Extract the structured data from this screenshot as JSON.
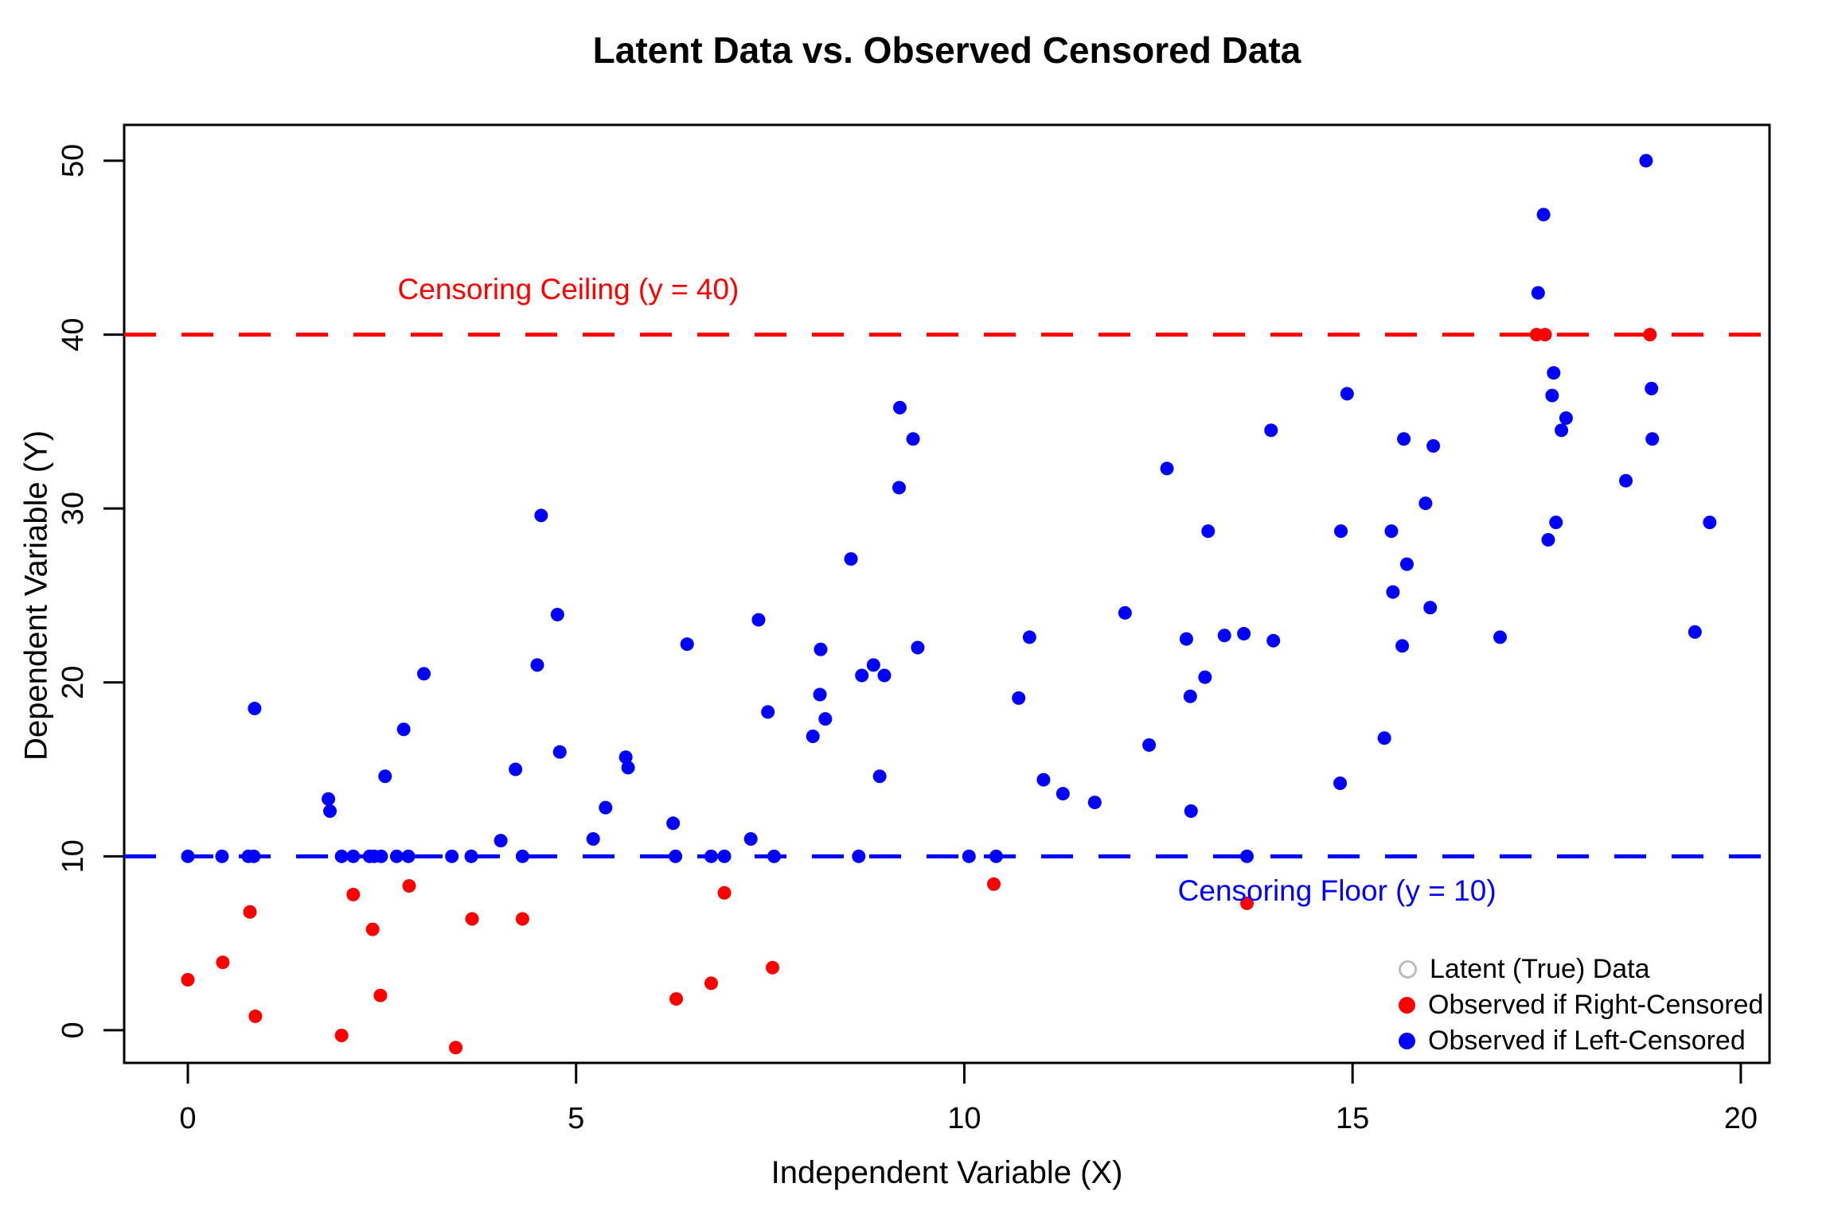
{
  "chart_data": {
    "type": "scatter",
    "title": "Latent Data vs. Observed Censored Data",
    "xlabel": "Independent Variable (X)",
    "ylabel": "Dependent Variable (Y)",
    "x_ticks": [
      0,
      5,
      10,
      15,
      20
    ],
    "y_ticks": [
      0,
      10,
      20,
      30,
      40,
      50
    ],
    "xlim": [
      -0.82,
      20.37
    ],
    "ylim": [
      -1.88,
      52.06
    ],
    "grid": false,
    "background": "#ffffff",
    "reference_lines": {
      "ceiling": {
        "y": 40,
        "label": "Censoring Ceiling (y = 40)",
        "color": "#ff0000",
        "style": "dashed",
        "label_anchor": {
          "x": 4.9,
          "y": 42.6
        }
      },
      "floor": {
        "y": 10,
        "label": "Censoring Floor (y = 10)",
        "color": "#0000ff",
        "style": "dashed",
        "label_anchor": {
          "x": 14.8,
          "y": 8.0
        }
      }
    },
    "legend": {
      "position": "bottom-right",
      "entries": [
        {
          "label": "Latent (True) Data",
          "marker": "open-circle",
          "color": "#bdbdbd"
        },
        {
          "label": "Observed if Right-Censored",
          "marker": "filled-circle",
          "color": "#ff0000"
        },
        {
          "label": "Observed if Left-Censored",
          "marker": "filled-circle",
          "color": "#0000ff"
        }
      ]
    },
    "series": [
      {
        "name": "Observed if Right-Censored",
        "color": "#ff0000",
        "points": [
          [
            0.0,
            2.9
          ],
          [
            0.45,
            3.9
          ],
          [
            0.8,
            6.8
          ],
          [
            0.87,
            0.8
          ],
          [
            1.98,
            -0.3
          ],
          [
            2.13,
            7.8
          ],
          [
            2.38,
            5.8
          ],
          [
            2.48,
            2.0
          ],
          [
            2.85,
            8.3
          ],
          [
            3.45,
            -1.0
          ],
          [
            3.66,
            6.4
          ],
          [
            4.31,
            6.4
          ],
          [
            6.29,
            1.8
          ],
          [
            6.74,
            2.7
          ],
          [
            6.91,
            7.9
          ],
          [
            7.53,
            3.6
          ],
          [
            10.38,
            8.4
          ],
          [
            13.64,
            7.3
          ],
          [
            17.37,
            40
          ],
          [
            17.48,
            40
          ],
          [
            18.83,
            40
          ]
        ]
      },
      {
        "name": "Observed if Left-Censored",
        "color": "#0000ff",
        "points": [
          [
            0.0,
            10
          ],
          [
            0.44,
            10
          ],
          [
            0.78,
            10
          ],
          [
            0.85,
            10
          ],
          [
            1.98,
            10
          ],
          [
            2.13,
            10
          ],
          [
            2.34,
            10
          ],
          [
            2.4,
            10
          ],
          [
            2.49,
            10
          ],
          [
            2.69,
            10
          ],
          [
            2.84,
            10
          ],
          [
            3.4,
            10
          ],
          [
            3.65,
            10
          ],
          [
            4.31,
            10
          ],
          [
            6.28,
            10
          ],
          [
            6.74,
            10
          ],
          [
            6.91,
            10
          ],
          [
            7.55,
            10
          ],
          [
            8.64,
            10
          ],
          [
            10.06,
            10
          ],
          [
            10.41,
            10
          ],
          [
            13.64,
            10
          ],
          [
            0.86,
            18.5
          ],
          [
            1.81,
            13.3
          ],
          [
            1.83,
            12.6
          ],
          [
            2.54,
            14.6
          ],
          [
            2.78,
            17.3
          ],
          [
            3.04,
            20.5
          ],
          [
            4.03,
            10.9
          ],
          [
            4.22,
            15.0
          ],
          [
            4.5,
            21.0
          ],
          [
            4.55,
            29.6
          ],
          [
            4.76,
            23.9
          ],
          [
            4.79,
            16.0
          ],
          [
            5.22,
            11.0
          ],
          [
            5.38,
            12.8
          ],
          [
            5.64,
            15.7
          ],
          [
            5.67,
            15.1
          ],
          [
            6.25,
            11.9
          ],
          [
            6.43,
            22.2
          ],
          [
            7.25,
            11.0
          ],
          [
            7.35,
            23.6
          ],
          [
            7.47,
            18.3
          ],
          [
            8.05,
            16.9
          ],
          [
            8.14,
            19.3
          ],
          [
            8.15,
            21.9
          ],
          [
            8.21,
            17.9
          ],
          [
            8.54,
            27.1
          ],
          [
            8.68,
            20.4
          ],
          [
            8.83,
            21.0
          ],
          [
            8.91,
            14.6
          ],
          [
            8.97,
            20.4
          ],
          [
            9.16,
            31.2
          ],
          [
            9.17,
            35.8
          ],
          [
            9.34,
            34.0
          ],
          [
            9.4,
            22.0
          ],
          [
            10.7,
            19.1
          ],
          [
            10.84,
            22.6
          ],
          [
            11.02,
            14.4
          ],
          [
            11.27,
            13.6
          ],
          [
            11.68,
            13.1
          ],
          [
            12.07,
            24.0
          ],
          [
            12.38,
            16.4
          ],
          [
            12.61,
            32.3
          ],
          [
            12.86,
            22.5
          ],
          [
            12.91,
            19.2
          ],
          [
            12.92,
            12.6
          ],
          [
            13.1,
            20.3
          ],
          [
            13.14,
            28.7
          ],
          [
            13.35,
            22.7
          ],
          [
            13.6,
            22.8
          ],
          [
            13.95,
            34.5
          ],
          [
            13.98,
            22.4
          ],
          [
            14.84,
            14.2
          ],
          [
            14.85,
            28.7
          ],
          [
            14.93,
            36.6
          ],
          [
            15.41,
            16.8
          ],
          [
            15.5,
            28.7
          ],
          [
            15.52,
            25.2
          ],
          [
            15.64,
            22.1
          ],
          [
            15.66,
            34.0
          ],
          [
            15.7,
            26.8
          ],
          [
            15.94,
            30.3
          ],
          [
            16.0,
            24.3
          ],
          [
            16.04,
            33.6
          ],
          [
            16.9,
            22.6
          ],
          [
            17.39,
            42.4
          ],
          [
            17.46,
            46.9
          ],
          [
            17.52,
            28.2
          ],
          [
            17.57,
            36.5
          ],
          [
            17.59,
            37.8
          ],
          [
            17.62,
            29.2
          ],
          [
            17.69,
            34.5
          ],
          [
            17.75,
            35.2
          ],
          [
            18.52,
            31.6
          ],
          [
            18.78,
            50.0
          ],
          [
            18.85,
            36.9
          ],
          [
            18.86,
            34.0
          ],
          [
            19.41,
            22.9
          ],
          [
            19.6,
            29.2
          ]
        ]
      }
    ],
    "marker_radius_px": 8.5
  }
}
